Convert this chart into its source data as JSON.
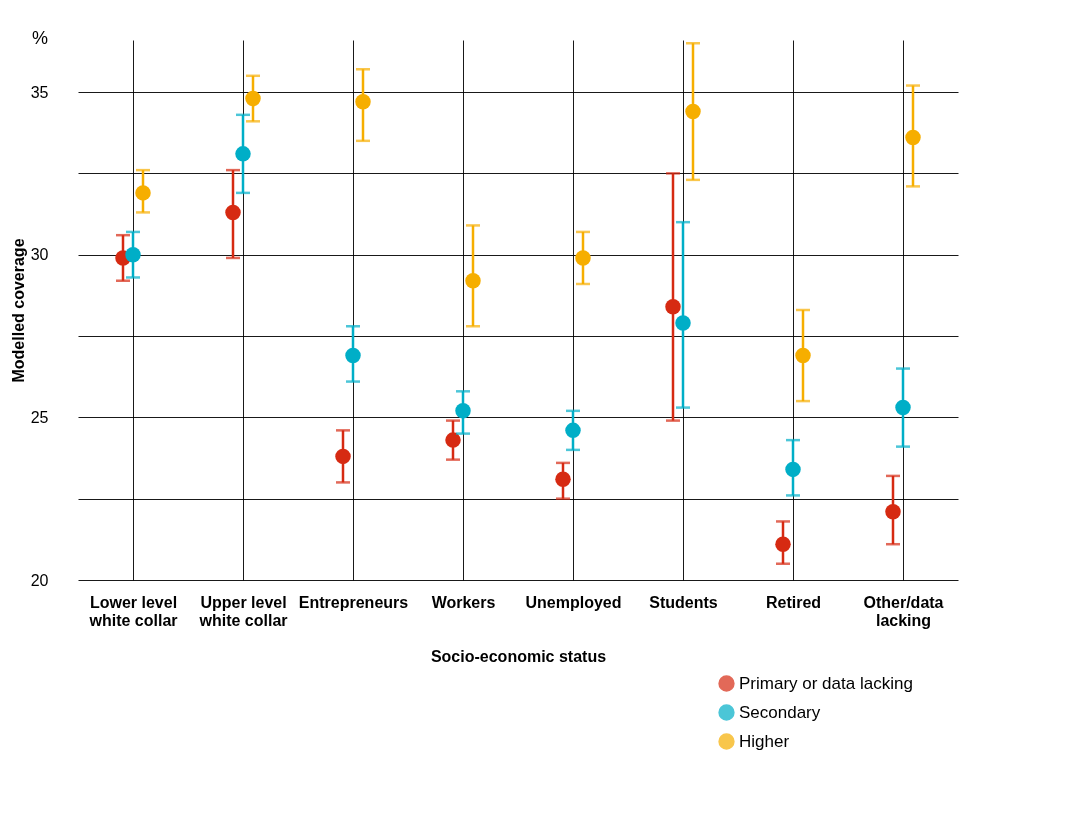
{
  "chart_data": {
    "type": "scatter",
    "xlabel": "Socio-economic status",
    "ylabel": "Modelled coverage",
    "annotations": [
      "%"
    ],
    "categories": [
      "Lower level white collar",
      "Upper level white collar",
      "Entrepreneurs",
      "Workers",
      "Unemployed",
      "Students",
      "Retired",
      "Other/data lacking"
    ],
    "series": [
      {
        "name": "Primary or data lacking",
        "color": "#d62a12",
        "values": [
          29.9,
          31.3,
          23.8,
          24.3,
          23.1,
          28.4,
          21.1,
          22.1
        ],
        "errors": [
          [
            29.2,
            30.6
          ],
          [
            29.9,
            32.6
          ],
          [
            23.0,
            24.6
          ],
          [
            23.7,
            24.9
          ],
          [
            22.5,
            23.6
          ],
          [
            24.9,
            32.5
          ],
          [
            20.5,
            21.8
          ],
          [
            21.1,
            23.2
          ]
        ]
      },
      {
        "name": "Secondary",
        "color": "#00aec7",
        "values": [
          30.0,
          33.1,
          26.9,
          25.2,
          24.6,
          27.9,
          23.4,
          25.3
        ],
        "errors": [
          [
            29.3,
            30.7
          ],
          [
            31.9,
            34.3
          ],
          [
            26.1,
            27.8
          ],
          [
            24.5,
            25.8
          ],
          [
            24.0,
            25.2
          ],
          [
            25.3,
            31.0
          ],
          [
            22.6,
            24.3
          ],
          [
            24.1,
            26.5
          ]
        ]
      },
      {
        "name": "Higher",
        "color": "#f6ae00",
        "values": [
          31.9,
          34.8,
          34.7,
          29.2,
          29.9,
          34.4,
          26.9,
          33.6
        ],
        "errors": [
          [
            31.3,
            32.6
          ],
          [
            34.1,
            35.5
          ],
          [
            33.5,
            35.7
          ],
          [
            27.8,
            30.9
          ],
          [
            29.1,
            30.7
          ],
          [
            32.3,
            36.5
          ],
          [
            25.5,
            28.3
          ],
          [
            32.1,
            35.2
          ]
        ]
      }
    ],
    "ylim": [
      20,
      36.6
    ],
    "yticks": [
      20,
      {
        "value": 22.5,
        "label": null
      },
      25,
      {
        "value": 27.5,
        "label": null
      },
      30,
      {
        "value": 32.5,
        "label": null
      },
      35
    ],
    "grid": true,
    "legend": "bottom right",
    "marker": "circle"
  }
}
